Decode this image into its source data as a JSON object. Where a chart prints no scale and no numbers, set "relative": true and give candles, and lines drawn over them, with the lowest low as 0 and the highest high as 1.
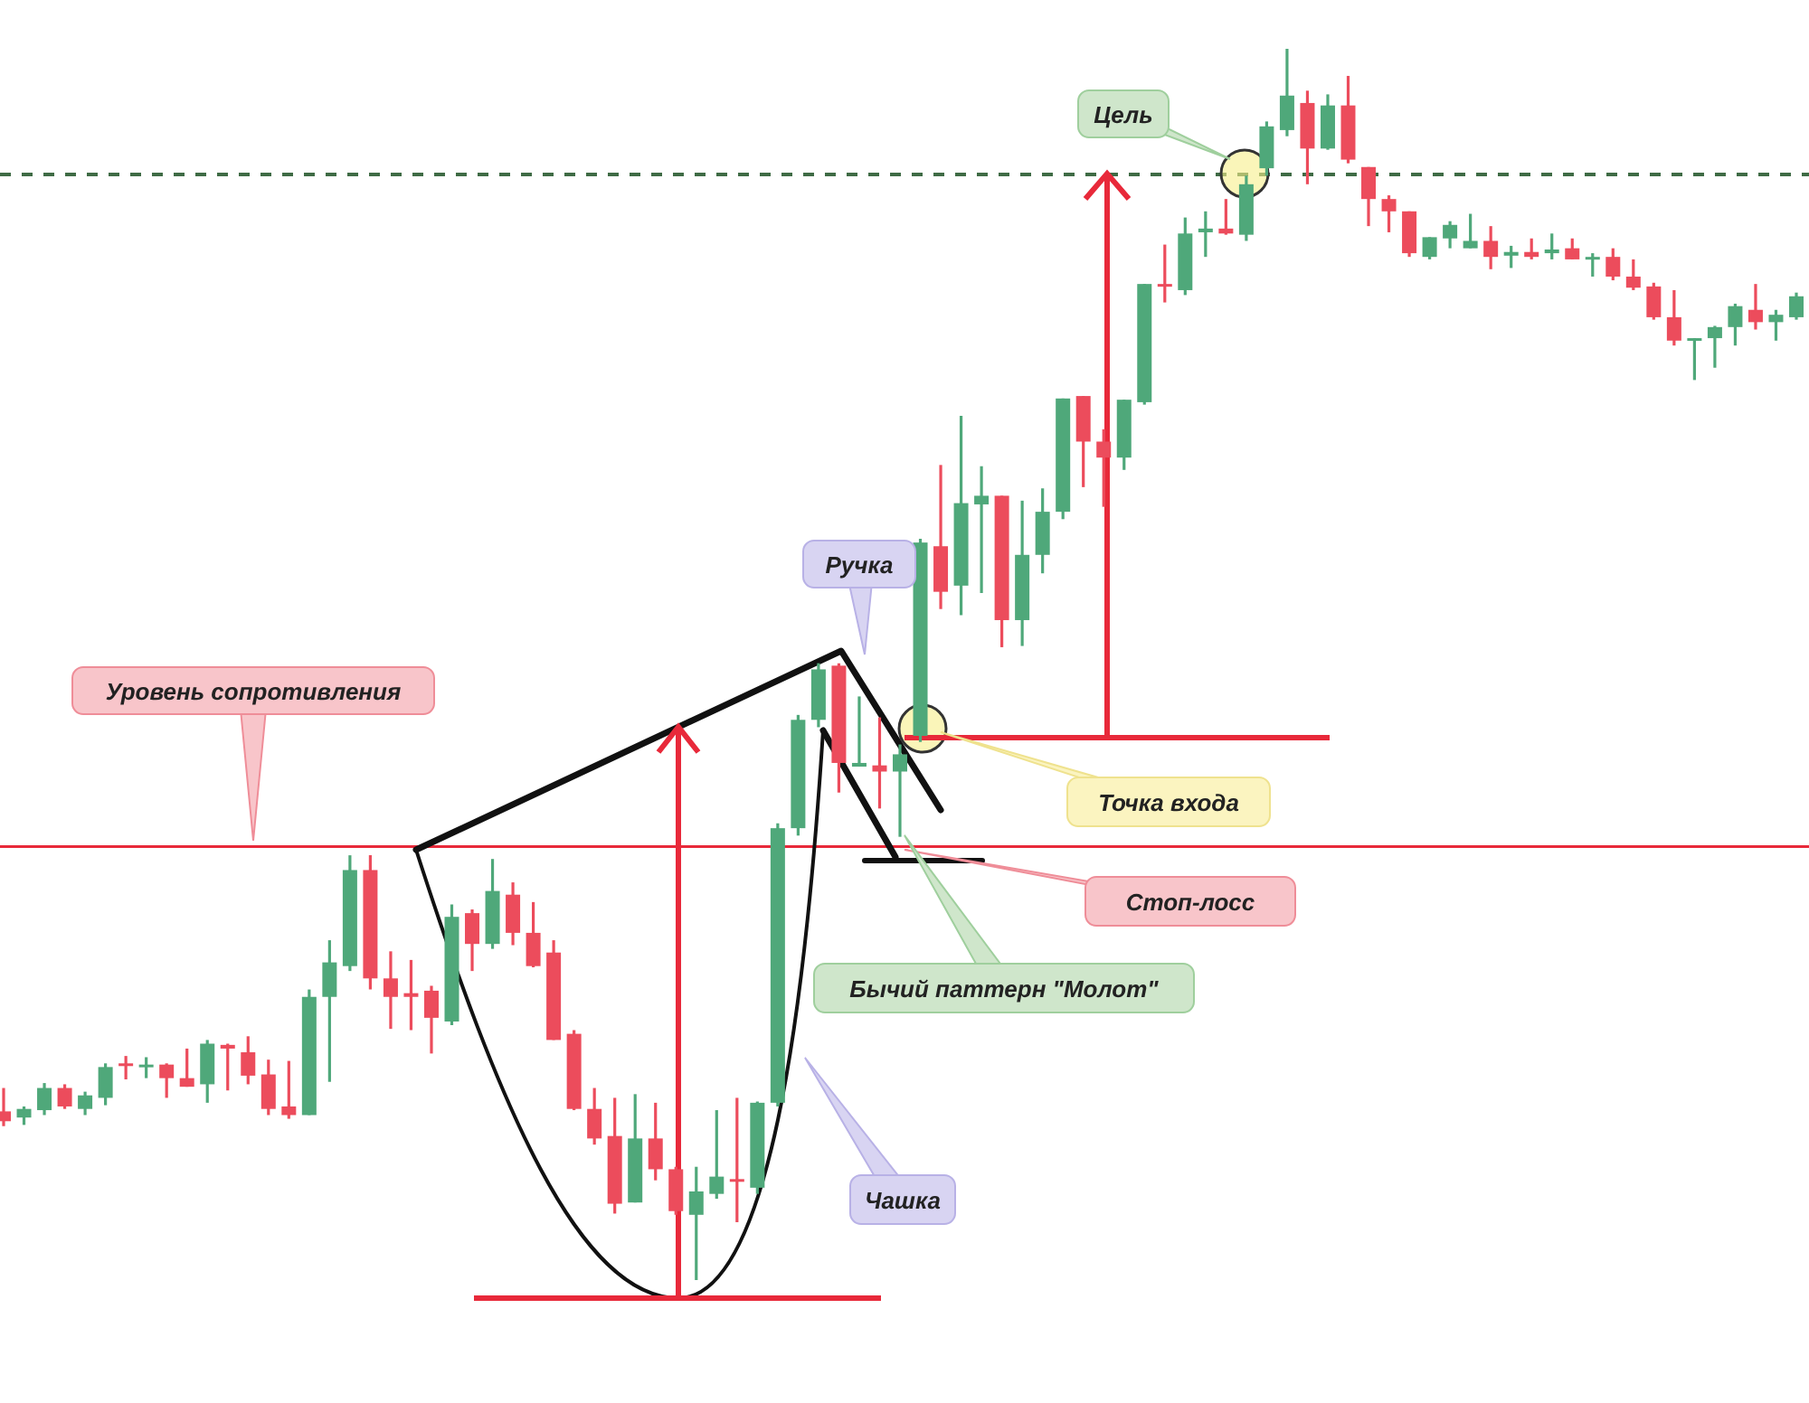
{
  "chart_data": {
    "type": "candlestick",
    "relative": true,
    "categories": [
      null,
      null,
      null,
      null,
      null,
      null,
      null,
      null,
      null,
      null,
      null,
      null,
      null,
      null,
      null,
      null,
      null,
      null,
      null,
      null,
      null,
      null,
      null,
      null,
      null,
      null,
      null,
      null,
      null,
      null,
      null,
      null,
      null,
      null,
      null,
      null,
      null,
      null,
      null,
      null,
      null,
      null,
      null,
      null,
      null,
      null,
      null,
      null,
      null,
      null,
      null,
      null,
      null,
      null,
      null,
      null,
      null,
      null,
      null,
      null,
      null,
      null,
      null,
      null,
      null,
      null,
      null,
      null,
      null,
      null,
      null,
      null,
      null,
      null,
      null,
      null,
      null,
      null,
      null,
      null,
      null,
      null,
      null,
      null,
      null,
      null,
      null,
      null,
      null
    ],
    "ohlc": [
      [
        0.137,
        0.156,
        0.125,
        0.129
      ],
      [
        0.132,
        0.141,
        0.126,
        0.139
      ],
      [
        0.138,
        0.16,
        0.134,
        0.156
      ],
      [
        0.156,
        0.159,
        0.139,
        0.141
      ],
      [
        0.139,
        0.153,
        0.134,
        0.15
      ],
      [
        0.148,
        0.176,
        0.142,
        0.173
      ],
      [
        0.176,
        0.182,
        0.163,
        0.175
      ],
      [
        0.173,
        0.181,
        0.164,
        0.175
      ],
      [
        0.175,
        0.176,
        0.148,
        0.164
      ],
      [
        0.164,
        0.188,
        0.157,
        0.157
      ],
      [
        0.159,
        0.195,
        0.144,
        0.192
      ],
      [
        0.191,
        0.192,
        0.154,
        0.188
      ],
      [
        0.185,
        0.198,
        0.159,
        0.166
      ],
      [
        0.167,
        0.179,
        0.134,
        0.139
      ],
      [
        0.141,
        0.178,
        0.131,
        0.134
      ],
      [
        0.134,
        0.236,
        0.134,
        0.23
      ],
      [
        0.23,
        0.276,
        0.161,
        0.258
      ],
      [
        0.255,
        0.345,
        0.251,
        0.333
      ],
      [
        0.333,
        0.345,
        0.236,
        0.245
      ],
      [
        0.245,
        0.267,
        0.204,
        0.23
      ],
      [
        0.233,
        0.26,
        0.203,
        0.23
      ],
      [
        0.235,
        0.239,
        0.184,
        0.213
      ],
      [
        0.21,
        0.305,
        0.207,
        0.295
      ],
      [
        0.298,
        0.301,
        0.251,
        0.273
      ],
      [
        0.273,
        0.342,
        0.269,
        0.316
      ],
      [
        0.313,
        0.323,
        0.272,
        0.282
      ],
      [
        0.282,
        0.307,
        0.254,
        0.255
      ],
      [
        0.266,
        0.276,
        0.195,
        0.195
      ],
      [
        0.2,
        0.203,
        0.138,
        0.139
      ],
      [
        0.139,
        0.156,
        0.11,
        0.115
      ],
      [
        0.117,
        0.148,
        0.054,
        0.062
      ],
      [
        0.063,
        0.151,
        0.063,
        0.115
      ],
      [
        0.115,
        0.144,
        0.081,
        0.09
      ],
      [
        0.09,
        0.092,
        0.053,
        0.056
      ],
      [
        0.053,
        0.092,
        0,
        0.072
      ],
      [
        0.07,
        0.138,
        0.066,
        0.084
      ],
      [
        0.082,
        0.148,
        0.047,
        0.081
      ],
      [
        0.075,
        0.145,
        0.07,
        0.144
      ],
      [
        0.144,
        0.371,
        0.141,
        0.367
      ],
      [
        0.367,
        0.459,
        0.361,
        0.455
      ],
      [
        0.455,
        0.501,
        0.449,
        0.496
      ],
      [
        0.499,
        0.501,
        0.396,
        0.42
      ],
      [
        0.417,
        0.474,
        0.417,
        0.42
      ],
      [
        0.418,
        0.457,
        0.383,
        0.413
      ],
      [
        0.413,
        0.435,
        0.36,
        0.427
      ],
      [
        0.442,
        0.602,
        0.437,
        0.599
      ],
      [
        0.596,
        0.662,
        0.545,
        0.559
      ],
      [
        0.564,
        0.702,
        0.54,
        0.631
      ],
      [
        0.63,
        0.661,
        0.558,
        0.637
      ],
      [
        0.637,
        0.637,
        0.514,
        0.536
      ],
      [
        0.536,
        0.633,
        0.515,
        0.589
      ],
      [
        0.589,
        0.643,
        0.574,
        0.624
      ],
      [
        0.624,
        0.716,
        0.618,
        0.716
      ],
      [
        0.718,
        0.718,
        0.644,
        0.681
      ],
      [
        0.681,
        0.691,
        0.628,
        0.668
      ],
      [
        0.668,
        0.715,
        0.658,
        0.715
      ],
      [
        0.713,
        0.809,
        0.711,
        0.809
      ],
      [
        0.809,
        0.841,
        0.794,
        0.807
      ],
      [
        0.804,
        0.863,
        0.8,
        0.85
      ],
      [
        0.851,
        0.868,
        0.831,
        0.854
      ],
      [
        0.854,
        0.878,
        0.849,
        0.85
      ],
      [
        0.849,
        0.897,
        0.844,
        0.89
      ],
      [
        0.903,
        0.941,
        0.897,
        0.937
      ],
      [
        0.934,
        1,
        0.929,
        0.962
      ],
      [
        0.956,
        0.966,
        0.89,
        0.919
      ],
      [
        0.919,
        0.963,
        0.918,
        0.954
      ],
      [
        0.954,
        0.978,
        0.907,
        0.91
      ],
      [
        0.904,
        0.904,
        0.856,
        0.878
      ],
      [
        0.878,
        0.881,
        0.851,
        0.868
      ],
      [
        0.868,
        0.868,
        0.831,
        0.834
      ],
      [
        0.831,
        0.847,
        0.829,
        0.847
      ],
      [
        0.846,
        0.86,
        0.838,
        0.857
      ],
      [
        0.838,
        0.866,
        0.838,
        0.844
      ],
      [
        0.844,
        0.856,
        0.821,
        0.831
      ],
      [
        0.832,
        0.84,
        0.822,
        0.835
      ],
      [
        0.835,
        0.846,
        0.829,
        0.831
      ],
      [
        0.834,
        0.85,
        0.829,
        0.837
      ],
      [
        0.838,
        0.846,
        0.829,
        0.829
      ],
      [
        0.829,
        0.834,
        0.815,
        0.831
      ],
      [
        0.831,
        0.838,
        0.812,
        0.815
      ],
      [
        0.815,
        0.829,
        0.804,
        0.806
      ],
      [
        0.807,
        0.81,
        0.78,
        0.782
      ],
      [
        0.782,
        0.804,
        0.759,
        0.763
      ],
      [
        0.763,
        0.765,
        0.731,
        0.765
      ],
      [
        0.765,
        0.775,
        0.741,
        0.774
      ],
      [
        0.774,
        0.793,
        0.759,
        0.791
      ],
      [
        0.788,
        0.809,
        0.772,
        0.778
      ],
      [
        0.778,
        0.788,
        0.763,
        0.784
      ],
      [
        0.782,
        0.802,
        0.78,
        0.799
      ]
    ],
    "ref_lines": [
      {
        "axis": "y",
        "value": 0.352,
        "label": "Уровень сопротивления",
        "color": "#e8293a",
        "line_style": "solid"
      },
      {
        "axis": "y",
        "value": 0.898,
        "label": "Цель",
        "color": "#3f6b45",
        "line_style": "dashed"
      }
    ],
    "annotations": [
      "Ручка",
      "Точка входа",
      "Стоп-лосс",
      "Бычий паттерн \"Молот\"",
      "Чашка"
    ]
  }
}
